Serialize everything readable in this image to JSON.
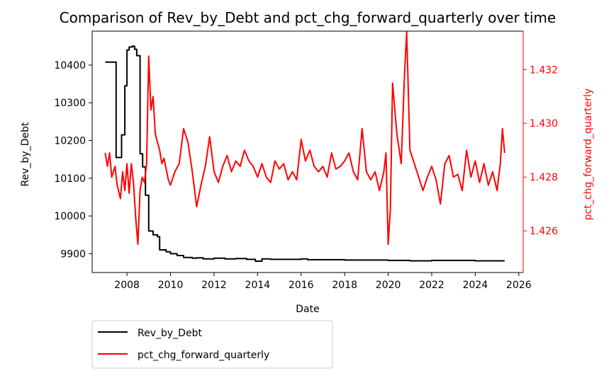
{
  "chart_data": {
    "type": "line",
    "title": "Comparison of Rev_by_Debt and pct_chg_forward_quarterly over time",
    "xlabel": "Date",
    "ylabel_left": "Rev_by_Debt",
    "ylabel_right": "pct_chg_forward_quarterly",
    "xlim": [
      2006.4,
      2026.2
    ],
    "ylim_left": [
      9850,
      10490
    ],
    "ylim_right": [
      1.42445,
      1.43343
    ],
    "x_ticks": [
      "2008",
      "2010",
      "2012",
      "2014",
      "2016",
      "2018",
      "2020",
      "2022",
      "2024",
      "2026"
    ],
    "y_ticks_left": [
      "9900",
      "10000",
      "10100",
      "10200",
      "10300",
      "10400"
    ],
    "y_ticks_right": [
      "1.426",
      "1.428",
      "1.430",
      "1.432"
    ],
    "grid": false,
    "legend_position": "below-left",
    "series": [
      {
        "name": "Rev_by_Debt",
        "color": "#000000",
        "axis": "left",
        "step": true,
        "x": [
          2007.0,
          2007.5,
          2007.75,
          2007.9,
          2008.0,
          2008.1,
          2008.25,
          2008.35,
          2008.45,
          2008.6,
          2008.72,
          2008.85,
          2009.0,
          2009.2,
          2009.4,
          2009.5,
          2009.8,
          2010.0,
          2010.3,
          2010.6,
          2011.0,
          2011.2,
          2011.5,
          2012.0,
          2012.5,
          2013.0,
          2013.5,
          2013.9,
          2014.2,
          2014.6,
          2015.0,
          2016.0,
          2016.3,
          2017.0,
          2018.0,
          2019.0,
          2020.0,
          2021.0,
          2022.0,
          2023.0,
          2024.0,
          2025.3
        ],
        "y": [
          10408,
          10155,
          10215,
          10345,
          10440,
          10448,
          10450,
          10442,
          10425,
          10165,
          10130,
          10055,
          9960,
          9950,
          9945,
          9910,
          9905,
          9900,
          9895,
          9890,
          9888,
          9889,
          9886,
          9888,
          9886,
          9887,
          9885,
          9880,
          9886,
          9885,
          9885,
          9886,
          9884,
          9884,
          9883,
          9883,
          9882,
          9881,
          9882,
          9882,
          9881,
          9881
        ]
      },
      {
        "name": "pct_chg_forward_quarterly",
        "color": "#ff0000",
        "axis": "right",
        "step": false,
        "x": [
          2007.0,
          2007.1,
          2007.2,
          2007.3,
          2007.45,
          2007.55,
          2007.7,
          2007.8,
          2007.9,
          2008.0,
          2008.1,
          2008.2,
          2008.3,
          2008.4,
          2008.5,
          2008.6,
          2008.7,
          2008.8,
          2008.9,
          2009.0,
          2009.1,
          2009.2,
          2009.3,
          2009.4,
          2009.5,
          2009.6,
          2009.7,
          2009.8,
          2009.9,
          2010.0,
          2010.2,
          2010.4,
          2010.6,
          2010.8,
          2011.0,
          2011.2,
          2011.4,
          2011.6,
          2011.8,
          2012.0,
          2012.2,
          2012.4,
          2012.6,
          2012.8,
          2013.0,
          2013.2,
          2013.4,
          2013.6,
          2013.8,
          2014.0,
          2014.2,
          2014.4,
          2014.6,
          2014.8,
          2015.0,
          2015.2,
          2015.4,
          2015.6,
          2015.8,
          2016.0,
          2016.2,
          2016.4,
          2016.6,
          2016.8,
          2017.0,
          2017.2,
          2017.4,
          2017.6,
          2017.8,
          2018.0,
          2018.2,
          2018.4,
          2018.6,
          2018.8,
          2019.0,
          2019.2,
          2019.4,
          2019.6,
          2019.8,
          2019.9,
          2020.0,
          2020.1,
          2020.2,
          2020.4,
          2020.6,
          2020.75,
          2020.85,
          2021.0,
          2021.2,
          2021.4,
          2021.6,
          2021.8,
          2022.0,
          2022.2,
          2022.4,
          2022.6,
          2022.8,
          2023.0,
          2023.2,
          2023.4,
          2023.6,
          2023.8,
          2024.0,
          2024.2,
          2024.4,
          2024.6,
          2024.8,
          2025.0,
          2025.15,
          2025.25,
          2025.35
        ],
        "y": [
          1.4289,
          1.4284,
          1.4289,
          1.428,
          1.4284,
          1.4277,
          1.4272,
          1.4282,
          1.4275,
          1.4285,
          1.4274,
          1.4285,
          1.4278,
          1.4265,
          1.4255,
          1.4275,
          1.428,
          1.4278,
          1.4285,
          1.4325,
          1.4305,
          1.431,
          1.4296,
          1.4293,
          1.429,
          1.4285,
          1.4287,
          1.4283,
          1.4279,
          1.4277,
          1.4282,
          1.4285,
          1.4298,
          1.4293,
          1.4282,
          1.4269,
          1.4277,
          1.4284,
          1.4295,
          1.4282,
          1.4278,
          1.4284,
          1.4288,
          1.4282,
          1.4286,
          1.4284,
          1.429,
          1.4286,
          1.4284,
          1.428,
          1.4285,
          1.428,
          1.4278,
          1.4286,
          1.4283,
          1.4285,
          1.4279,
          1.4282,
          1.4279,
          1.4294,
          1.4286,
          1.429,
          1.4284,
          1.4282,
          1.4284,
          1.428,
          1.4289,
          1.4283,
          1.4284,
          1.4286,
          1.4289,
          1.4282,
          1.4279,
          1.4298,
          1.4282,
          1.4279,
          1.4282,
          1.4275,
          1.4282,
          1.4289,
          1.4255,
          1.4268,
          1.4315,
          1.4296,
          1.4285,
          1.4318,
          1.4334,
          1.429,
          1.4285,
          1.428,
          1.4275,
          1.428,
          1.4284,
          1.4279,
          1.427,
          1.4285,
          1.4288,
          1.428,
          1.4281,
          1.4275,
          1.429,
          1.428,
          1.4286,
          1.4278,
          1.4285,
          1.4277,
          1.4282,
          1.4275,
          1.4285,
          1.4298,
          1.4289
        ]
      }
    ]
  }
}
